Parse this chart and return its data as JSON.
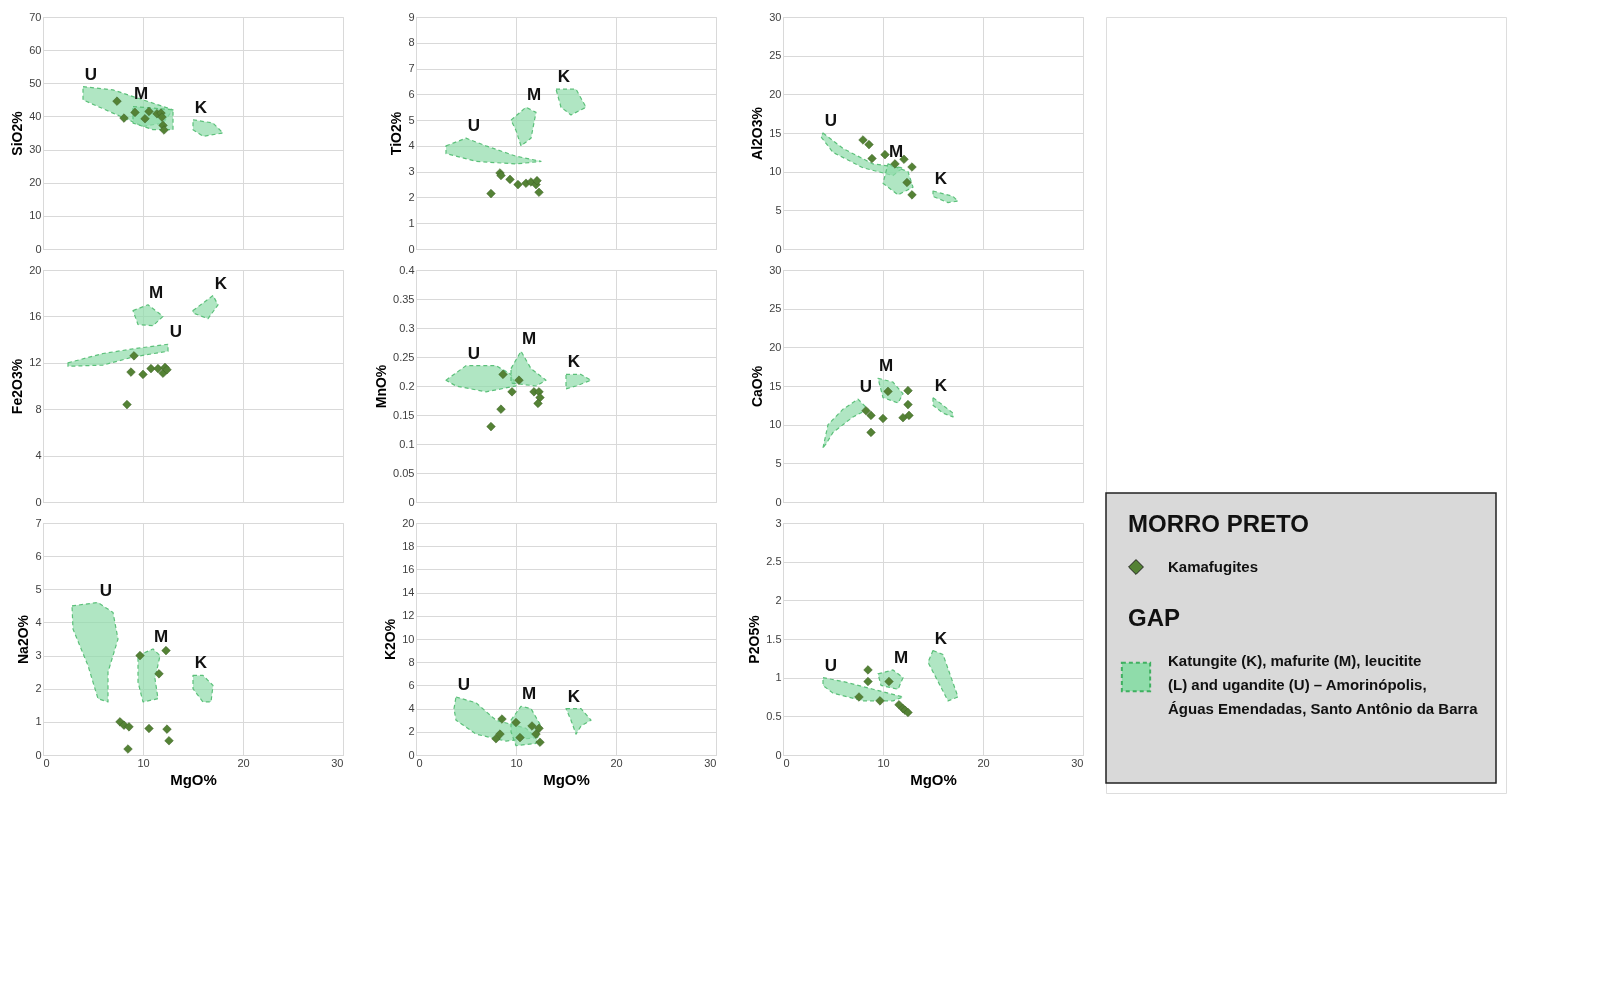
{
  "chart_data": [
    {
      "type": "scatter",
      "ylabel": "SiO2%",
      "xlim": [
        0,
        30
      ],
      "xticks": [
        0,
        10,
        20,
        30
      ],
      "ylim": [
        0,
        70
      ],
      "yticks": [
        0,
        10,
        20,
        30,
        40,
        50,
        60,
        70
      ],
      "grid": true,
      "tick_labels": "y",
      "marker": "diamond",
      "line_style": "dashed",
      "series": [
        {
          "type": "area",
          "marker": "none",
          "color": "#8fdcaa",
          "x": [
            4,
            7,
            10,
            13,
            12,
            10,
            7,
            4,
            null,
            9,
            13,
            13,
            11,
            9,
            null,
            15,
            17,
            18,
            16,
            15
          ],
          "values": [
            49,
            48,
            45,
            42,
            38,
            37,
            41,
            45,
            null,
            43,
            42,
            36,
            36,
            38,
            null,
            39,
            38,
            35,
            34,
            36
          ]
        },
        {
          "color": "#548235",
          "x": [
            7.4,
            8.1,
            9.2,
            10.2,
            10.6,
            11.4,
            11.8,
            11.9,
            12.0,
            12.1
          ],
          "values": [
            44.6,
            39.5,
            41.2,
            39.3,
            41.5,
            40.8,
            41,
            39.8,
            37.3,
            35.9
          ]
        }
      ],
      "annotations": [
        "U",
        "M",
        "K"
      ]
    },
    {
      "type": "scatter",
      "ylabel": "TiO2%",
      "xlim": [
        0,
        30
      ],
      "xticks": [
        0,
        10,
        20,
        30
      ],
      "ylim": [
        0,
        9
      ],
      "yticks": [
        0,
        1,
        2,
        3,
        4,
        5,
        6,
        7,
        8,
        9
      ],
      "grid": true,
      "tick_labels": "y",
      "marker": "diamond",
      "line_style": "dashed",
      "series": [
        {
          "type": "area",
          "marker": "none",
          "color": "#8fdcaa",
          "x": [
            3,
            5,
            7,
            10,
            12.5,
            10,
            6,
            3,
            null,
            9.5,
            11,
            12,
            11.5,
            10.5,
            10,
            null,
            14,
            16,
            17,
            15.5,
            14.5
          ],
          "values": [
            4,
            4.3,
            4,
            3.6,
            3.4,
            3.3,
            3.4,
            3.7,
            null,
            5,
            5.5,
            5.3,
            4.3,
            4,
            4.6,
            null,
            6.2,
            6.2,
            5.5,
            5.2,
            5.5
          ]
        },
        {
          "color": "#548235",
          "x": [
            7.5,
            8.4,
            8.5,
            9.4,
            10.2,
            11.0,
            11.5,
            12.0,
            12.1,
            12.3
          ],
          "values": [
            2.15,
            2.95,
            2.85,
            2.7,
            2.5,
            2.55,
            2.6,
            2.5,
            2.65,
            2.2
          ]
        }
      ],
      "annotations": [
        "U",
        "M",
        "K"
      ]
    },
    {
      "type": "scatter",
      "ylabel": "Al2O3%",
      "xlim": [
        0,
        30
      ],
      "xticks": [
        0,
        10,
        20,
        30
      ],
      "ylim": [
        0,
        30
      ],
      "yticks": [
        0,
        5,
        10,
        15,
        20,
        25,
        30
      ],
      "grid": true,
      "tick_labels": "y",
      "marker": "diamond",
      "line_style": "dashed",
      "series": [
        {
          "type": "area",
          "marker": "none",
          "color": "#8fdcaa",
          "x": [
            4,
            6,
            9,
            12,
            11,
            8,
            5,
            3.8,
            null,
            10.5,
            12.5,
            13,
            11.5,
            10,
            null,
            15,
            17,
            17.5,
            16.5,
            15
          ],
          "values": [
            15,
            13,
            11,
            10.5,
            9.5,
            10.5,
            12.5,
            14.5,
            null,
            11,
            10,
            8,
            7,
            8.5,
            null,
            7.5,
            6.8,
            6.2,
            6,
            6.8
          ]
        },
        {
          "color": "#548235",
          "x": [
            8,
            8.6,
            8.9,
            10.2,
            11.2,
            12.1,
            12.9,
            12.4,
            12.9
          ],
          "values": [
            14.1,
            13.5,
            11.7,
            12.2,
            11,
            11.6,
            10.6,
            8.6,
            7.0
          ]
        }
      ],
      "annotations": [
        "U",
        "M",
        "K"
      ]
    },
    {
      "type": "scatter",
      "ylabel": "Fe2O3%",
      "xlim": [
        0,
        30
      ],
      "xticks": [
        0,
        10,
        20,
        30
      ],
      "ylim": [
        0,
        20
      ],
      "yticks": [
        0,
        4,
        8,
        12,
        16,
        20
      ],
      "grid": true,
      "tick_labels": "y",
      "marker": "diamond",
      "line_style": "dashed",
      "series": [
        {
          "type": "area",
          "marker": "none",
          "color": "#8fdcaa",
          "x": [
            2.5,
            6,
            9,
            12.5,
            12.5,
            9,
            6,
            2.5,
            null,
            9,
            10.5,
            12,
            11,
            9.5,
            null,
            15,
            17,
            17.5,
            16.5,
            15
          ],
          "values": [
            12,
            12.8,
            13.2,
            13.6,
            13,
            12.5,
            11.8,
            11.7,
            null,
            16.5,
            17,
            16,
            15.2,
            15.3,
            null,
            16.5,
            17.8,
            17,
            15.8,
            16.3
          ]
        },
        {
          "color": "#548235",
          "x": [
            8.4,
            9.1,
            8.8,
            10,
            10.8,
            11.5,
            12,
            12.2,
            12.4
          ],
          "values": [
            8.4,
            12.6,
            11.2,
            11,
            11.5,
            11.5,
            11.1,
            11.6,
            11.4
          ]
        }
      ],
      "annotations": [
        "U",
        "M",
        "K"
      ]
    },
    {
      "type": "scatter",
      "ylabel": "MnO%",
      "xlim": [
        0,
        30
      ],
      "xticks": [
        0,
        10,
        20,
        30
      ],
      "ylim": [
        0,
        0.4
      ],
      "yticks": [
        0,
        0.05,
        0.1,
        0.15,
        0.2,
        0.25,
        0.3,
        0.35,
        0.4
      ],
      "grid": true,
      "tick_labels": "y",
      "marker": "diamond",
      "line_style": "dashed",
      "series": [
        {
          "type": "area",
          "marker": "none",
          "color": "#8fdcaa",
          "x": [
            3,
            5,
            8,
            9.5,
            10,
            7,
            4,
            null,
            9.5,
            10.5,
            11.5,
            13,
            12,
            9.5,
            null,
            15,
            16.5,
            17.5,
            16,
            15
          ],
          "values": [
            0.21,
            0.235,
            0.235,
            0.22,
            0.2,
            0.19,
            0.2,
            null,
            0.23,
            0.26,
            0.23,
            0.21,
            0.2,
            0.205,
            null,
            0.22,
            0.22,
            0.21,
            0.2,
            0.195
          ]
        },
        {
          "color": "#548235",
          "x": [
            7.5,
            8.5,
            8.7,
            9.6,
            10.3,
            11.8,
            12.3,
            12.4,
            12.2
          ],
          "values": [
            0.13,
            0.16,
            0.22,
            0.19,
            0.21,
            0.19,
            0.19,
            0.18,
            0.17
          ]
        }
      ],
      "annotations": [
        "U",
        "M",
        "K"
      ]
    },
    {
      "type": "scatter",
      "ylabel": "CaO%",
      "xlim": [
        0,
        30
      ],
      "xticks": [
        0,
        10,
        20,
        30
      ],
      "ylim": [
        0,
        30
      ],
      "yticks": [
        0,
        5,
        10,
        15,
        20,
        25,
        30
      ],
      "grid": true,
      "tick_labels": "y",
      "marker": "diamond",
      "line_style": "dashed",
      "series": [
        {
          "type": "area",
          "marker": "none",
          "color": "#8fdcaa",
          "x": [
            4,
            4.5,
            6,
            7.5,
            8.5,
            7,
            5,
            4.3,
            null,
            9.5,
            11,
            12,
            11.5,
            10,
            null,
            15,
            17,
            17,
            16,
            15
          ],
          "values": [
            7,
            10,
            12,
            13.3,
            12,
            11,
            9,
            7.5,
            null,
            16,
            15.5,
            14,
            12.8,
            13.5,
            null,
            13.5,
            11.5,
            11,
            11.5,
            12.5
          ]
        },
        {
          "color": "#548235",
          "x": [
            8.3,
            8.8,
            8.8,
            10,
            10.5,
            12,
            12.5,
            12.5,
            12.6
          ],
          "values": [
            11.8,
            11.2,
            9,
            10.8,
            14.3,
            10.9,
            12.6,
            14.4,
            11.2
          ]
        }
      ],
      "annotations": [
        "U",
        "M",
        "K"
      ]
    },
    {
      "type": "scatter",
      "xlabel": "MgO%",
      "ylabel": "Na2O%",
      "xlim": [
        0,
        30
      ],
      "xticks": [
        0,
        10,
        20,
        30
      ],
      "ylim": [
        0,
        7
      ],
      "yticks": [
        0,
        1,
        2,
        3,
        4,
        5,
        6,
        7
      ],
      "grid": true,
      "marker": "diamond",
      "line_style": "dashed",
      "series": [
        {
          "type": "area",
          "marker": "none",
          "color": "#8fdcaa",
          "x": [
            2.9,
            5.5,
            7,
            7.5,
            6.5,
            6.5,
            5.5,
            4.5,
            3,
            null,
            9.5,
            11,
            11.7,
            11.2,
            11.5,
            10,
            9.5,
            null,
            15,
            16,
            17,
            16.8,
            16,
            15
          ],
          "values": [
            4.5,
            4.6,
            4.3,
            3.5,
            2.5,
            1.6,
            1.7,
            2.7,
            3.8,
            null,
            3,
            3.2,
            3,
            2.3,
            1.7,
            1.6,
            2.2,
            null,
            2.4,
            2.4,
            2.1,
            1.6,
            1.6,
            2
          ]
        },
        {
          "color": "#548235",
          "x": [
            7.7,
            8.1,
            8.6,
            8.5,
            9.7,
            10.6,
            11.6,
            12.3,
            12.4,
            12.6
          ],
          "values": [
            1.0,
            0.9,
            0.85,
            0.18,
            3.0,
            0.8,
            2.45,
            3.15,
            0.78,
            0.43
          ]
        }
      ],
      "annotations": [
        "U",
        "M",
        "K"
      ]
    },
    {
      "type": "scatter",
      "xlabel": "MgO%",
      "ylabel": "K2O%",
      "xlim": [
        0,
        30
      ],
      "xticks": [
        0,
        10,
        20,
        30
      ],
      "ylim": [
        0,
        20
      ],
      "yticks": [
        0,
        2,
        4,
        6,
        8,
        10,
        12,
        14,
        16,
        18,
        20
      ],
      "grid": true,
      "marker": "diamond",
      "line_style": "dashed",
      "series": [
        {
          "type": "area",
          "marker": "none",
          "color": "#8fdcaa",
          "x": [
            4,
            6,
            8,
            11,
            12,
            9,
            6,
            4,
            3.8,
            null,
            9.5,
            10.5,
            11.5,
            12.5,
            12,
            10,
            9.5,
            null,
            15,
            16.5,
            17.5,
            16.5,
            16,
            15.5
          ],
          "values": [
            5,
            4.5,
            3,
            2.3,
            1.5,
            1.2,
            1.8,
            3,
            4,
            null,
            3,
            4.2,
            4,
            2.5,
            1,
            0.8,
            2,
            null,
            4,
            4,
            3,
            2.5,
            1.8,
            3
          ]
        },
        {
          "color": "#548235",
          "x": [
            8,
            8.4,
            8.6,
            10,
            10.4,
            11.6,
            12,
            12.3,
            12.4
          ],
          "values": [
            1.4,
            1.8,
            3.1,
            2.8,
            1.5,
            2.5,
            1.8,
            2.3,
            1.1
          ]
        }
      ],
      "annotations": [
        "U",
        "M",
        "K"
      ]
    },
    {
      "type": "scatter",
      "xlabel": "MgO%",
      "ylabel": "P2O5%",
      "xlim": [
        0,
        30
      ],
      "xticks": [
        0,
        10,
        20,
        30
      ],
      "ylim": [
        0,
        3
      ],
      "yticks": [
        0,
        0.5,
        1,
        1.5,
        2,
        2.5,
        3
      ],
      "grid": true,
      "marker": "diamond",
      "line_style": "dashed",
      "legend": "right",
      "legend_title": "MORRO PRETO",
      "series": [
        {
          "type": "area",
          "marker": "none",
          "name": "Katungite (K), mafurite (M), leucitite (L) and ugandite (U) – Amorinópolis, Águas Emendadas, Santo Antônio da Barra",
          "color": "#8fdcaa",
          "x": [
            4,
            6,
            9,
            12,
            11,
            8,
            5,
            4,
            null,
            9.5,
            11,
            12,
            11.5,
            9.8,
            null,
            15,
            16,
            17.5,
            16.5,
            15.5,
            14.5
          ],
          "values": [
            1,
            0.95,
            0.85,
            0.75,
            0.7,
            0.7,
            0.8,
            0.9,
            null,
            1.05,
            1.1,
            1,
            0.85,
            0.9,
            null,
            1.35,
            1.3,
            0.75,
            0.7,
            0.95,
            1.2
          ]
        },
        {
          "name": "Kamafugites",
          "color": "#548235",
          "x": [
            7.6,
            8.5,
            8.5,
            9.7,
            10.6,
            11.6,
            12,
            12.2,
            12.5
          ],
          "values": [
            0.75,
            1.1,
            0.95,
            0.7,
            0.95,
            0.65,
            0.6,
            0.58,
            0.55
          ]
        }
      ],
      "annotations": [
        "U",
        "M",
        "K",
        "GAP"
      ]
    }
  ]
}
